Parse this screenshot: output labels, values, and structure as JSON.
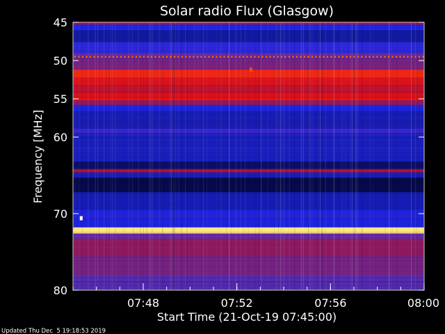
{
  "chart_data": {
    "type": "heatmap",
    "title": "Solar radio Flux (Glasgow)",
    "ylabel": "Frequency [MHz]",
    "xlabel": "Start Time (21-Oct-19 07:45:00)",
    "footer": "Updated Thu Dec  5 19:18:53 2019",
    "ylim": [
      45,
      80
    ],
    "y_inverted": true,
    "y_ticks": [
      45,
      50,
      55,
      60,
      70,
      80
    ],
    "x_range_minutes": [
      0,
      15
    ],
    "x_ticks": [
      {
        "minute": 3,
        "label": "07:48"
      },
      {
        "minute": 7,
        "label": "07:52"
      },
      {
        "minute": 11,
        "label": "07:56"
      },
      {
        "minute": 15,
        "label": "08:00"
      }
    ],
    "colormap": [
      "#000010",
      "#0b0f6a",
      "#1c25e6",
      "#5a2aa6",
      "#a3103f",
      "#e81212",
      "#ff5a14",
      "#ffe060",
      "#ffffff"
    ],
    "bands": [
      {
        "from": 45.0,
        "to": 45.3,
        "level": 0.5
      },
      {
        "from": 45.3,
        "to": 46.0,
        "level": 0.25
      },
      {
        "from": 46.0,
        "to": 47.6,
        "level": 0.18
      },
      {
        "from": 47.6,
        "to": 49.0,
        "level": 0.28
      },
      {
        "from": 49.0,
        "to": 49.7,
        "level": 0.38
      },
      {
        "from": 49.7,
        "to": 51.2,
        "level": 0.42
      },
      {
        "from": 51.2,
        "to": 52.2,
        "level": 0.66
      },
      {
        "from": 52.2,
        "to": 53.2,
        "level": 0.6
      },
      {
        "from": 53.2,
        "to": 54.4,
        "level": 0.55
      },
      {
        "from": 54.4,
        "to": 55.2,
        "level": 0.62
      },
      {
        "from": 55.2,
        "to": 55.8,
        "level": 0.46
      },
      {
        "from": 55.8,
        "to": 56.6,
        "level": 0.24
      },
      {
        "from": 56.6,
        "to": 58.9,
        "level": 0.2
      },
      {
        "from": 58.9,
        "to": 59.5,
        "level": 0.3
      },
      {
        "from": 59.5,
        "to": 63.2,
        "level": 0.21
      },
      {
        "from": 63.2,
        "to": 64.2,
        "level": 0.12
      },
      {
        "from": 64.2,
        "to": 64.6,
        "level": 0.52
      },
      {
        "from": 64.6,
        "to": 65.3,
        "level": 0.2
      },
      {
        "from": 65.3,
        "to": 67.2,
        "level": 0.08
      },
      {
        "from": 67.2,
        "to": 69.5,
        "level": 0.2
      },
      {
        "from": 69.5,
        "to": 71.8,
        "level": 0.24
      },
      {
        "from": 71.8,
        "to": 72.6,
        "level": 0.9
      },
      {
        "from": 72.6,
        "to": 73.3,
        "level": 0.38
      },
      {
        "from": 73.3,
        "to": 75.5,
        "level": 0.46
      },
      {
        "from": 75.5,
        "to": 78.0,
        "level": 0.42
      },
      {
        "from": 78.0,
        "to": 80.0,
        "level": 0.36
      }
    ],
    "interference_line": {
      "frequency": 49.5,
      "level": 0.75
    },
    "bursts": [
      {
        "minute": 7.6,
        "frequency": 51.2,
        "level": 0.72
      },
      {
        "minute": 0.35,
        "frequency": 70.6,
        "level": 1.0
      }
    ]
  }
}
